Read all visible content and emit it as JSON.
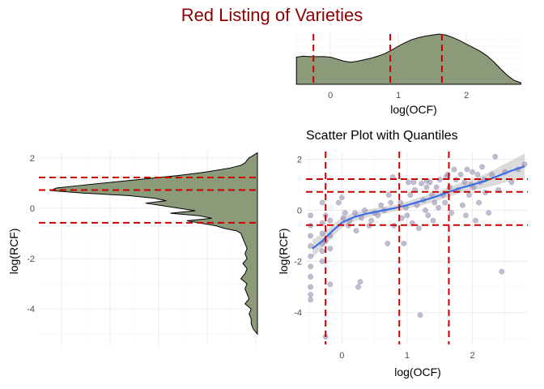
{
  "figure": {
    "title": "Red Listing of Varieties"
  },
  "chart_data": [
    {
      "id": "top",
      "type": "area",
      "xlabel": "log(OCF)",
      "ylabel": "",
      "xlim": [
        -0.55,
        2.82
      ],
      "ylim": [
        0,
        1
      ],
      "xticks": [
        0,
        1,
        2
      ],
      "xtick_labels": [
        "0",
        "1",
        "2"
      ],
      "grid": true,
      "density": {
        "x": [
          -0.5,
          -0.4,
          -0.3,
          -0.2,
          -0.1,
          0.0,
          0.1,
          0.2,
          0.3,
          0.4,
          0.5,
          0.6,
          0.7,
          0.8,
          0.9,
          1.0,
          1.1,
          1.2,
          1.3,
          1.4,
          1.5,
          1.6,
          1.7,
          1.8,
          1.9,
          2.0,
          2.1,
          2.2,
          2.3,
          2.4,
          2.5,
          2.6,
          2.7,
          2.8
        ],
        "y": [
          0.54,
          0.56,
          0.55,
          0.55,
          0.55,
          0.54,
          0.5,
          0.46,
          0.44,
          0.46,
          0.49,
          0.52,
          0.56,
          0.61,
          0.68,
          0.76,
          0.83,
          0.89,
          0.93,
          0.96,
          0.98,
          1.0,
          0.98,
          0.93,
          0.87,
          0.8,
          0.73,
          0.66,
          0.57,
          0.45,
          0.31,
          0.18,
          0.08,
          0.03
        ]
      },
      "quantiles": [
        -0.25,
        0.88,
        1.64
      ]
    },
    {
      "id": "left",
      "type": "area",
      "xlabel": "",
      "ylabel": "log(RCF)",
      "ylim": [
        -5.25,
        2.25
      ],
      "yticks": [
        2,
        0,
        -2,
        -4
      ],
      "ytick_labels": [
        "2",
        "0",
        "-2",
        "-4"
      ],
      "grid": true,
      "density": {
        "y": [
          2.2,
          2.1,
          2.0,
          1.9,
          1.8,
          1.7,
          1.6,
          1.5,
          1.4,
          1.3,
          1.2,
          1.1,
          1.0,
          0.9,
          0.8,
          0.7,
          0.6,
          0.5,
          0.4,
          0.3,
          0.2,
          0.1,
          0.0,
          -0.1,
          -0.2,
          -0.3,
          -0.4,
          -0.5,
          -0.6,
          -0.7,
          -0.8,
          -0.9,
          -1.0,
          -1.2,
          -1.4,
          -1.6,
          -1.8,
          -2.0,
          -2.2,
          -2.4,
          -2.6,
          -2.8,
          -3.0,
          -3.2,
          -3.4,
          -3.6,
          -3.8,
          -4.0,
          -4.2,
          -4.4,
          -4.6,
          -4.8,
          -5.0
        ],
        "x": [
          0.0,
          0.02,
          0.04,
          0.05,
          0.06,
          0.08,
          0.13,
          0.2,
          0.28,
          0.38,
          0.5,
          0.62,
          0.74,
          0.86,
          0.97,
          1.0,
          0.84,
          0.62,
          0.5,
          0.44,
          0.54,
          0.46,
          0.38,
          0.3,
          0.42,
          0.28,
          0.22,
          0.34,
          0.27,
          0.2,
          0.16,
          0.1,
          0.08,
          0.07,
          0.06,
          0.05,
          0.06,
          0.05,
          0.07,
          0.05,
          0.06,
          0.08,
          0.05,
          0.06,
          0.05,
          0.04,
          0.06,
          0.03,
          0.04,
          0.03,
          0.03,
          0.02,
          0.0
        ]
      },
      "quantiles": [
        1.22,
        0.72,
        -0.58
      ]
    },
    {
      "id": "scatter",
      "type": "scatter",
      "title": "Scatter Plot with Quantiles",
      "xlabel": "log(OCF)",
      "ylabel": "log(RCF)",
      "xlim": [
        -0.55,
        2.85
      ],
      "ylim": [
        -5.25,
        2.3
      ],
      "xticks": [
        0,
        1,
        2
      ],
      "xtick_labels": [
        "0",
        "1",
        "2"
      ],
      "yticks": [
        2,
        0,
        -2,
        -4
      ],
      "ytick_labels": [
        "2",
        "0",
        "-2",
        "-4"
      ],
      "grid": true,
      "quantiles_x": [
        -0.25,
        0.88,
        1.64
      ],
      "quantiles_y": [
        1.22,
        0.72,
        -0.58
      ],
      "points": [
        [
          -0.48,
          -0.2
        ],
        [
          -0.48,
          -0.6
        ],
        [
          -0.48,
          -1.0
        ],
        [
          -0.48,
          -1.4
        ],
        [
          -0.48,
          -1.8
        ],
        [
          -0.48,
          -2.2
        ],
        [
          -0.48,
          -2.6
        ],
        [
          -0.48,
          -3.0
        ],
        [
          -0.48,
          -3.3
        ],
        [
          -0.48,
          -3.5
        ],
        [
          -0.3,
          0.3
        ],
        [
          -0.3,
          -0.5
        ],
        [
          -0.3,
          -0.9
        ],
        [
          -0.3,
          -1.3
        ],
        [
          -0.3,
          -1.6
        ],
        [
          -0.3,
          -2.0
        ],
        [
          -0.25,
          -0.2
        ],
        [
          -0.25,
          -1.2
        ],
        [
          -0.25,
          -4.95
        ],
        [
          -0.18,
          -0.4
        ],
        [
          -0.18,
          -1.0
        ],
        [
          -0.18,
          -1.5
        ],
        [
          -0.18,
          -2.9
        ],
        [
          -0.05,
          0.3
        ],
        [
          0.0,
          0.5
        ],
        [
          0.02,
          -0.3
        ],
        [
          0.05,
          -0.1
        ],
        [
          0.1,
          -0.6
        ],
        [
          0.12,
          -0.4
        ],
        [
          0.2,
          -0.1
        ],
        [
          0.22,
          -0.8
        ],
        [
          0.25,
          -3.0
        ],
        [
          0.28,
          -2.8
        ],
        [
          0.3,
          -0.3
        ],
        [
          0.35,
          0.0
        ],
        [
          0.42,
          -0.6
        ],
        [
          0.45,
          -0.4
        ],
        [
          0.5,
          -0.1
        ],
        [
          0.55,
          -0.2
        ],
        [
          0.6,
          0.2
        ],
        [
          0.65,
          0.0
        ],
        [
          0.7,
          -1.3
        ],
        [
          0.72,
          0.6
        ],
        [
          0.75,
          0.3
        ],
        [
          0.78,
          1.3
        ],
        [
          0.8,
          -0.6
        ],
        [
          0.9,
          0.3
        ],
        [
          0.92,
          -0.3
        ],
        [
          0.95,
          -1.3
        ],
        [
          0.98,
          0.1
        ],
        [
          1.0,
          -0.2
        ],
        [
          1.02,
          1.1
        ],
        [
          1.05,
          0.6
        ],
        [
          1.08,
          -0.5
        ],
        [
          1.1,
          1.1
        ],
        [
          1.12,
          0.8
        ],
        [
          1.15,
          0.2
        ],
        [
          1.18,
          -0.7
        ],
        [
          1.2,
          -4.1
        ],
        [
          1.22,
          1.05
        ],
        [
          1.25,
          0.4
        ],
        [
          1.28,
          0.0
        ],
        [
          1.3,
          0.9
        ],
        [
          1.32,
          -0.2
        ],
        [
          1.35,
          1.1
        ],
        [
          1.38,
          0.6
        ],
        [
          1.4,
          -0.4
        ],
        [
          1.42,
          0.3
        ],
        [
          1.45,
          0.9
        ],
        [
          1.48,
          0.1
        ],
        [
          1.5,
          1.2
        ],
        [
          1.55,
          0.6
        ],
        [
          1.58,
          0.3
        ],
        [
          1.62,
          1.4
        ],
        [
          1.65,
          0.9
        ],
        [
          1.68,
          -0.1
        ],
        [
          1.72,
          1.6
        ],
        [
          1.75,
          1.2
        ],
        [
          1.78,
          0.8
        ],
        [
          1.82,
          1.4
        ],
        [
          1.85,
          0.2
        ],
        [
          1.88,
          1.1
        ],
        [
          1.9,
          -0.2
        ],
        [
          1.92,
          1.6
        ],
        [
          1.95,
          0.6
        ],
        [
          1.98,
          1.0
        ],
        [
          2.0,
          1.5
        ],
        [
          2.02,
          0.9
        ],
        [
          2.05,
          -0.4
        ],
        [
          2.08,
          1.4
        ],
        [
          2.1,
          0.3
        ],
        [
          2.12,
          1.1
        ],
        [
          2.15,
          1.7
        ],
        [
          2.18,
          1.2
        ],
        [
          2.2,
          0.7
        ],
        [
          2.25,
          -0.1
        ],
        [
          2.3,
          1.4
        ],
        [
          2.35,
          2.1
        ],
        [
          2.4,
          0.8
        ],
        [
          2.45,
          -2.4
        ],
        [
          2.5,
          1.5
        ],
        [
          2.6,
          1.1
        ],
        [
          2.7,
          1.6
        ],
        [
          2.8,
          1.8
        ],
        [
          1.6,
          1.3
        ],
        [
          1.3,
          1.15
        ]
      ],
      "smooth": {
        "x": [
          -0.45,
          -0.3,
          -0.15,
          0.0,
          0.2,
          0.4,
          0.6,
          0.8,
          1.0,
          1.2,
          1.4,
          1.6,
          1.8,
          2.0,
          2.2,
          2.4,
          2.6,
          2.8
        ],
        "y": [
          -1.5,
          -1.2,
          -0.82,
          -0.48,
          -0.25,
          -0.12,
          -0.02,
          0.08,
          0.2,
          0.35,
          0.5,
          0.68,
          0.86,
          1.0,
          1.15,
          1.35,
          1.55,
          1.72
        ],
        "lower": [
          -1.85,
          -1.48,
          -1.05,
          -0.68,
          -0.42,
          -0.27,
          -0.16,
          -0.04,
          0.06,
          0.18,
          0.32,
          0.5,
          0.66,
          0.78,
          0.88,
          1.02,
          1.15,
          1.22
        ],
        "upper": [
          -1.15,
          -0.92,
          -0.59,
          -0.28,
          -0.08,
          0.03,
          0.12,
          0.2,
          0.34,
          0.52,
          0.68,
          0.86,
          1.06,
          1.22,
          1.42,
          1.68,
          1.95,
          2.22
        ]
      }
    }
  ]
}
